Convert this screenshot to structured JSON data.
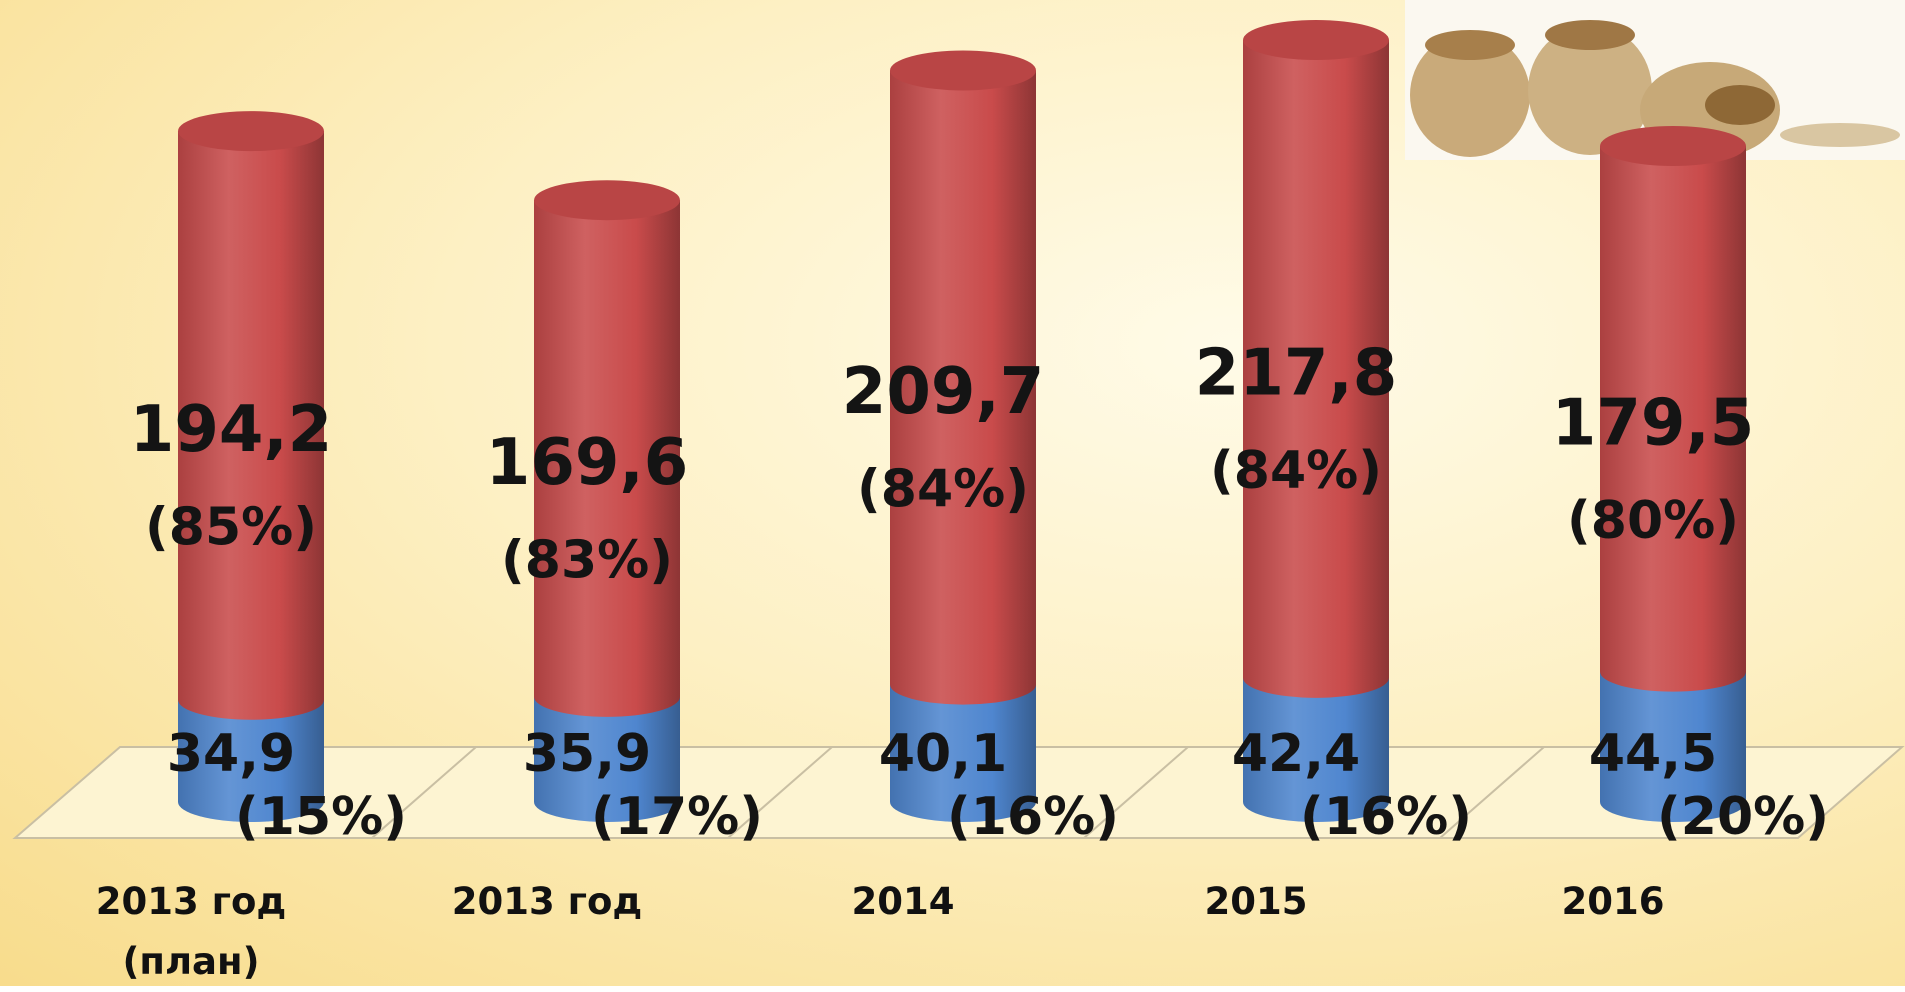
{
  "chart_data": {
    "type": "stacked_cylinder",
    "categories": [
      "2013 год (план)",
      "2013 год",
      "2014",
      "2015",
      "2016"
    ],
    "series": [
      {
        "color": "#4f86cf",
        "values": [
          34.9,
          35.9,
          40.1,
          42.4,
          44.5
        ],
        "value_labels": [
          "34,9",
          "35,9",
          "40,1",
          "42,4",
          "44,5"
        ],
        "shares": [
          15,
          17,
          16,
          16,
          20
        ],
        "share_labels": [
          "(15%)",
          "(17%)",
          "(16%)",
          "(16%)",
          "(20%)"
        ]
      },
      {
        "color": "#c94b4b",
        "values": [
          194.2,
          169.6,
          209.7,
          217.8,
          179.5
        ],
        "value_labels": [
          "194,2",
          "169,6",
          "209,7",
          "217,8",
          "179,5"
        ],
        "shares": [
          85,
          83,
          84,
          84,
          80
        ],
        "share_labels": [
          "(85%)",
          "(83%)",
          "(84%)",
          "(84%)",
          "(80%)"
        ]
      }
    ]
  }
}
